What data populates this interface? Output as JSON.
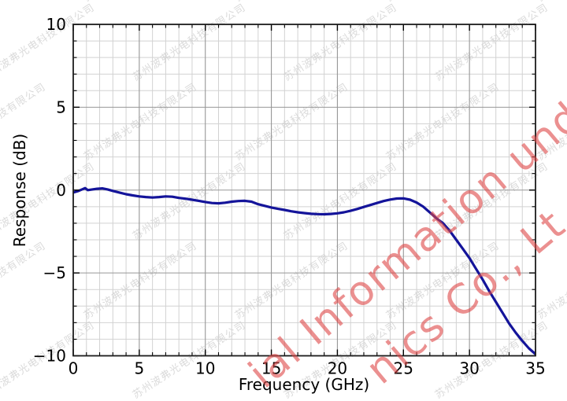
{
  "figure": {
    "background": "#ffffff"
  },
  "chart_data": {
    "type": "line",
    "title": "",
    "xlabel": "Frequency (GHz)",
    "ylabel": "Response (dB)",
    "xlim": [
      0,
      35
    ],
    "ylim": [
      -10,
      10
    ],
    "x_major_ticks": [
      0,
      5,
      10,
      15,
      20,
      25,
      30,
      35
    ],
    "x_tick_labels": [
      "0",
      "5",
      "10",
      "15",
      "20",
      "25",
      "30",
      "35"
    ],
    "y_major_ticks": [
      10,
      5,
      0,
      -5,
      -10
    ],
    "y_tick_labels": [
      "10",
      "5",
      "0",
      "−5",
      "−10"
    ],
    "minor_tick_step_x": 1,
    "minor_tick_step_y": 1,
    "grid": "major+minor on, gray",
    "legend": "none",
    "line_color": "#14149a",
    "series": [
      {
        "name": "Response",
        "x": [
          0,
          0.4,
          0.7,
          0.9,
          1.1,
          1.4,
          1.8,
          2.2,
          2.6,
          3.0,
          3.5,
          4.0,
          4.5,
          5.0,
          5.5,
          6.0,
          6.5,
          7.0,
          7.5,
          8.0,
          8.5,
          9.0,
          9.5,
          10.0,
          10.5,
          11.0,
          11.5,
          12.0,
          12.5,
          13.0,
          13.5,
          14.0,
          14.5,
          15.0,
          15.5,
          16.0,
          16.5,
          17.0,
          17.5,
          18.0,
          18.5,
          19.0,
          19.5,
          20.0,
          20.5,
          21.0,
          21.5,
          22.0,
          22.5,
          23.0,
          23.5,
          24.0,
          24.5,
          25.0,
          25.5,
          26.0,
          26.5,
          27.0,
          27.5,
          28.0,
          28.5,
          29.0,
          29.5,
          30.0,
          30.5,
          31.0,
          31.5,
          32.0,
          32.5,
          33.0,
          33.5,
          34.0,
          34.5,
          35.0
        ],
        "y": [
          -0.15,
          -0.05,
          0.05,
          0.12,
          0.0,
          0.03,
          0.08,
          0.1,
          0.04,
          -0.05,
          -0.15,
          -0.25,
          -0.32,
          -0.38,
          -0.42,
          -0.45,
          -0.42,
          -0.38,
          -0.4,
          -0.47,
          -0.52,
          -0.58,
          -0.65,
          -0.72,
          -0.78,
          -0.8,
          -0.76,
          -0.7,
          -0.66,
          -0.65,
          -0.7,
          -0.85,
          -0.95,
          -1.05,
          -1.13,
          -1.2,
          -1.28,
          -1.34,
          -1.39,
          -1.43,
          -1.45,
          -1.46,
          -1.44,
          -1.4,
          -1.34,
          -1.25,
          -1.14,
          -1.02,
          -0.9,
          -0.78,
          -0.66,
          -0.57,
          -0.51,
          -0.5,
          -0.58,
          -0.75,
          -1.0,
          -1.35,
          -1.7,
          -2.0,
          -2.45,
          -3.0,
          -3.55,
          -4.1,
          -4.75,
          -5.4,
          -6.1,
          -6.75,
          -7.4,
          -8.05,
          -8.6,
          -9.1,
          -9.55,
          -9.9
        ]
      }
    ]
  },
  "watermarks": {
    "company_tile_text": "苏州波弗光电科技有限公司",
    "red_line1": "ial Information und",
    "red_line2": "nics Co., Lt",
    "red_color": "#dd4646"
  }
}
